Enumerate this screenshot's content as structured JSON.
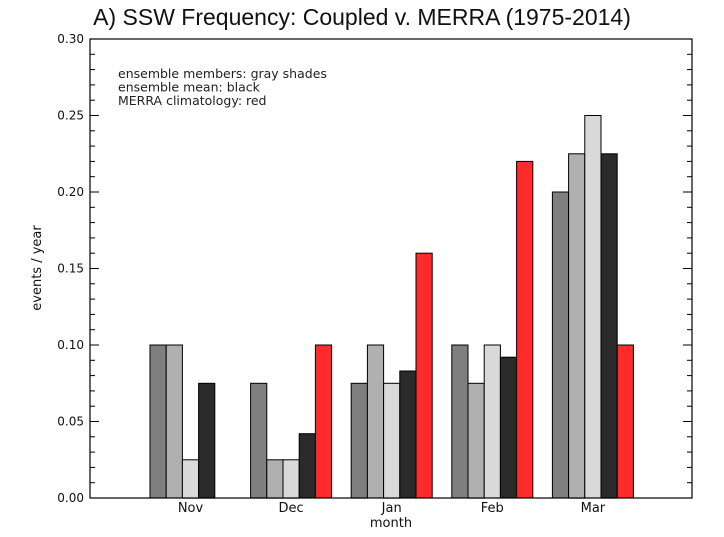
{
  "chart_data": {
    "type": "bar",
    "title": "A) SSW Frequency: Coupled v. MERRA (1975-2014)",
    "xlabel": "month",
    "ylabel": "events / year",
    "ylim": [
      0,
      0.3
    ],
    "yticks": [
      0.0,
      0.05,
      0.1,
      0.15,
      0.2,
      0.25,
      0.3
    ],
    "ytick_labels": [
      "0.00",
      "0.05",
      "0.10",
      "0.15",
      "0.20",
      "0.25",
      "0.30"
    ],
    "categories": [
      "Nov",
      "Dec",
      "Jan",
      "Feb",
      "Mar"
    ],
    "series": [
      {
        "color": "#7f7f7f",
        "values": [
          0.1,
          0.075,
          0.075,
          0.1,
          0.2
        ]
      },
      {
        "color": "#b0b0b0",
        "values": [
          0.1,
          0.025,
          0.1,
          0.075,
          0.225
        ]
      },
      {
        "color": "#d9d9d9",
        "values": [
          0.025,
          0.025,
          0.075,
          0.1,
          0.25
        ]
      },
      {
        "color": "#2a2a2a",
        "values": [
          0.075,
          0.042,
          0.083,
          0.092,
          0.225
        ]
      },
      {
        "color": "#ff2a2a",
        "values": [
          null,
          0.1,
          0.16,
          0.22,
          0.1
        ]
      }
    ],
    "annotations": [
      "ensemble members: gray shades",
      "ensemble mean: black",
      "MERRA climatology: red"
    ],
    "grid": false,
    "legend": "none"
  }
}
